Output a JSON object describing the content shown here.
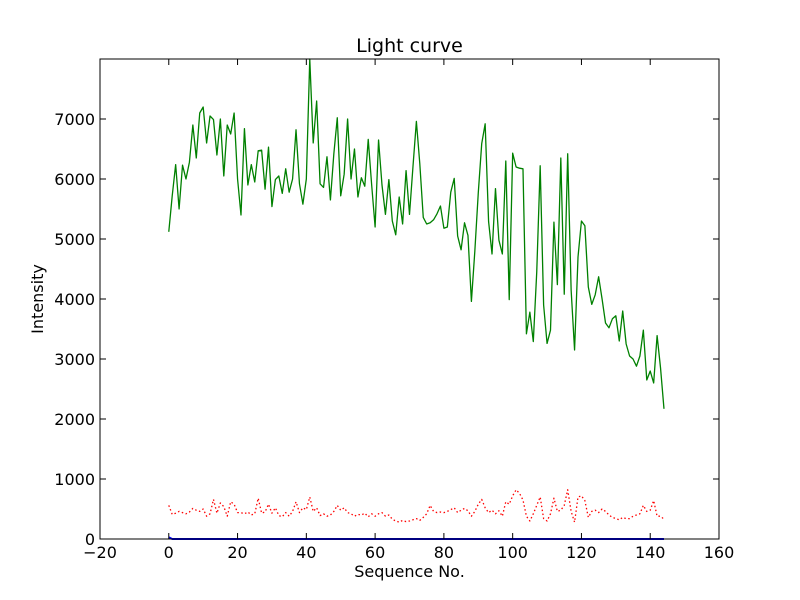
{
  "chart_data": {
    "type": "line",
    "title": "Light curve",
    "xlabel": "Sequence No.",
    "ylabel": "Intensity",
    "xlim": [
      -20,
      160
    ],
    "ylim": [
      0,
      8000
    ],
    "xticks": [
      -20,
      0,
      20,
      40,
      60,
      80,
      100,
      120,
      140,
      160
    ],
    "yticks": [
      0,
      1000,
      2000,
      3000,
      4000,
      5000,
      6000,
      7000
    ],
    "grid": false,
    "legend": "none",
    "series": [
      {
        "color": "#008000",
        "style": "solid",
        "x": [
          0,
          1,
          2,
          3,
          4,
          5,
          6,
          7,
          8,
          9,
          10,
          11,
          12,
          13,
          14,
          15,
          16,
          17,
          18,
          19,
          20,
          21,
          22,
          23,
          24,
          25,
          26,
          27,
          28,
          29,
          30,
          31,
          32,
          33,
          34,
          35,
          36,
          37,
          38,
          39,
          40,
          41,
          42,
          43,
          44,
          45,
          46,
          47,
          48,
          49,
          50,
          51,
          52,
          53,
          54,
          55,
          56,
          57,
          58,
          59,
          60,
          61,
          62,
          63,
          64,
          65,
          66,
          67,
          68,
          69,
          70,
          71,
          72,
          73,
          74,
          75,
          76,
          77,
          78,
          79,
          80,
          81,
          82,
          83,
          84,
          85,
          86,
          87,
          88,
          89,
          90,
          91,
          92,
          93,
          94,
          95,
          96,
          97,
          98,
          99,
          100,
          101,
          102,
          103,
          104,
          105,
          106,
          107,
          108,
          109,
          110,
          111,
          112,
          113,
          114,
          115,
          116,
          117,
          118,
          119,
          120,
          121,
          122,
          123,
          124,
          125,
          126,
          127,
          128,
          129,
          130,
          131,
          132,
          133,
          134,
          135,
          136,
          137,
          138,
          139,
          140,
          141,
          142,
          143,
          144
        ],
        "y": [
          5120,
          5720,
          6240,
          5500,
          6230,
          6000,
          6280,
          6900,
          6350,
          7100,
          7200,
          6600,
          7050,
          6990,
          6400,
          7000,
          6050,
          6900,
          6750,
          7100,
          6000,
          5400,
          6840,
          5900,
          6240,
          5950,
          6470,
          6480,
          5830,
          6530,
          5540,
          5990,
          6050,
          5760,
          6170,
          5780,
          6000,
          6820,
          5920,
          5580,
          6000,
          8000,
          6600,
          7300,
          5920,
          5860,
          6370,
          5650,
          6420,
          7020,
          5720,
          6080,
          7000,
          6000,
          6500,
          5700,
          6020,
          5880,
          6660,
          5900,
          5200,
          6650,
          5900,
          5410,
          5990,
          5300,
          5070,
          5700,
          5250,
          6140,
          5410,
          6200,
          6960,
          6250,
          5360,
          5250,
          5270,
          5320,
          5420,
          5550,
          5180,
          5200,
          5780,
          6010,
          5050,
          4820,
          5270,
          5060,
          3960,
          4800,
          5770,
          6590,
          6920,
          5290,
          4750,
          5840,
          4980,
          4750,
          6300,
          3990,
          6430,
          6200,
          6180,
          6170,
          3420,
          3780,
          3290,
          4450,
          6220,
          3900,
          3260,
          3480,
          5280,
          4240,
          6350,
          4080,
          6420,
          4150,
          3150,
          4700,
          5300,
          5220,
          4200,
          3910,
          4070,
          4370,
          4000,
          3600,
          3520,
          3670,
          3720,
          3300,
          3800,
          3250,
          3050,
          3000,
          2880,
          3050,
          3480,
          2650,
          2800,
          2600,
          3390,
          2850,
          2170
        ]
      },
      {
        "color": "#ff0000",
        "style": "dotted",
        "x": [
          0,
          1,
          2,
          3,
          4,
          5,
          6,
          7,
          8,
          9,
          10,
          11,
          12,
          13,
          14,
          15,
          16,
          17,
          18,
          19,
          20,
          21,
          22,
          23,
          24,
          25,
          26,
          27,
          28,
          29,
          30,
          31,
          32,
          33,
          34,
          35,
          36,
          37,
          38,
          39,
          40,
          41,
          42,
          43,
          44,
          45,
          46,
          47,
          48,
          49,
          50,
          51,
          52,
          53,
          54,
          55,
          56,
          57,
          58,
          59,
          60,
          61,
          62,
          63,
          64,
          65,
          66,
          67,
          68,
          69,
          70,
          71,
          72,
          73,
          74,
          75,
          76,
          77,
          78,
          79,
          80,
          81,
          82,
          83,
          84,
          85,
          86,
          87,
          88,
          89,
          90,
          91,
          92,
          93,
          94,
          95,
          96,
          97,
          98,
          99,
          100,
          101,
          102,
          103,
          104,
          105,
          106,
          107,
          108,
          109,
          110,
          111,
          112,
          113,
          114,
          115,
          116,
          117,
          118,
          119,
          120,
          121,
          122,
          123,
          124,
          125,
          126,
          127,
          128,
          129,
          130,
          131,
          132,
          133,
          134,
          135,
          136,
          137,
          138,
          139,
          140,
          141,
          142,
          143,
          144
        ],
        "y": [
          560,
          410,
          430,
          460,
          440,
          420,
          450,
          510,
          480,
          460,
          500,
          380,
          420,
          660,
          430,
          600,
          540,
          380,
          620,
          580,
          440,
          440,
          420,
          450,
          400,
          420,
          680,
          430,
          450,
          580,
          430,
          520,
          390,
          370,
          440,
          380,
          460,
          620,
          440,
          520,
          490,
          700,
          460,
          520,
          390,
          420,
          380,
          400,
          460,
          560,
          480,
          520,
          440,
          420,
          380,
          410,
          400,
          430,
          370,
          420,
          380,
          420,
          440,
          380,
          400,
          330,
          300,
          280,
          310,
          290,
          300,
          320,
          340,
          310,
          360,
          420,
          560,
          460,
          440,
          450,
          440,
          460,
          490,
          520,
          440,
          480,
          510,
          470,
          380,
          460,
          580,
          660,
          520,
          440,
          480,
          420,
          470,
          380,
          620,
          580,
          720,
          820,
          760,
          650,
          380,
          300,
          420,
          560,
          700,
          340,
          300,
          420,
          680,
          460,
          480,
          560,
          820,
          460,
          280,
          700,
          720,
          640,
          360,
          460,
          480,
          440,
          500,
          460,
          400,
          360,
          340,
          320,
          360,
          340,
          340,
          380,
          400,
          420,
          560,
          460,
          480,
          640,
          380,
          380,
          330
        ]
      },
      {
        "color": "#0000ff",
        "style": "solid",
        "x": [
          0,
          1,
          2,
          3,
          4,
          5,
          6,
          7,
          8,
          9,
          10,
          11,
          12,
          13,
          14,
          15,
          16,
          17,
          18,
          19,
          20,
          21,
          22,
          23,
          24,
          25,
          26,
          27,
          28,
          29,
          30,
          31,
          32,
          33,
          34,
          35,
          36,
          37,
          38,
          39,
          40,
          41,
          42,
          43,
          44,
          45,
          46,
          47,
          48,
          49,
          50,
          51,
          52,
          53,
          54,
          55,
          56,
          57,
          58,
          59,
          60,
          61,
          62,
          63,
          64,
          65,
          66,
          67,
          68,
          69,
          70,
          71,
          72,
          73,
          74,
          75,
          76,
          77,
          78,
          79,
          80,
          81,
          82,
          83,
          84,
          85,
          86,
          87,
          88,
          89,
          90,
          91,
          92,
          93,
          94,
          95,
          96,
          97,
          98,
          99,
          100,
          101,
          102,
          103,
          104,
          105,
          106,
          107,
          108,
          109,
          110,
          111,
          112,
          113,
          114,
          115,
          116,
          117,
          118,
          119,
          120,
          121,
          122,
          123,
          124,
          125,
          126,
          127,
          128,
          129,
          130,
          131,
          132,
          133,
          134,
          135,
          136,
          137,
          138,
          139,
          140,
          141,
          142,
          143,
          144
        ],
        "y": [
          30,
          0,
          0,
          0,
          0,
          0,
          0,
          0,
          0,
          0,
          0,
          0,
          0,
          0,
          0,
          0,
          0,
          0,
          0,
          0,
          0,
          0,
          0,
          0,
          0,
          0,
          0,
          0,
          0,
          0,
          0,
          0,
          0,
          0,
          0,
          0,
          0,
          0,
          0,
          0,
          0,
          0,
          0,
          0,
          0,
          0,
          0,
          0,
          0,
          0,
          0,
          0,
          0,
          0,
          0,
          0,
          0,
          0,
          0,
          0,
          0,
          0,
          0,
          0,
          0,
          0,
          0,
          0,
          0,
          0,
          0,
          0,
          0,
          0,
          0,
          0,
          0,
          0,
          0,
          0,
          0,
          0,
          0,
          0,
          0,
          0,
          0,
          0,
          0,
          0,
          0,
          0,
          0,
          0,
          0,
          0,
          0,
          0,
          0,
          0,
          0,
          0,
          0,
          0,
          0,
          0,
          0,
          0,
          0,
          0,
          0,
          0,
          0,
          0,
          0,
          0,
          0,
          0,
          0,
          0,
          0,
          0,
          0,
          0,
          0,
          0,
          0,
          0,
          0,
          0,
          0,
          0,
          0,
          0,
          0,
          0,
          0,
          0,
          0,
          0,
          0,
          0,
          0,
          0,
          0
        ]
      }
    ]
  }
}
